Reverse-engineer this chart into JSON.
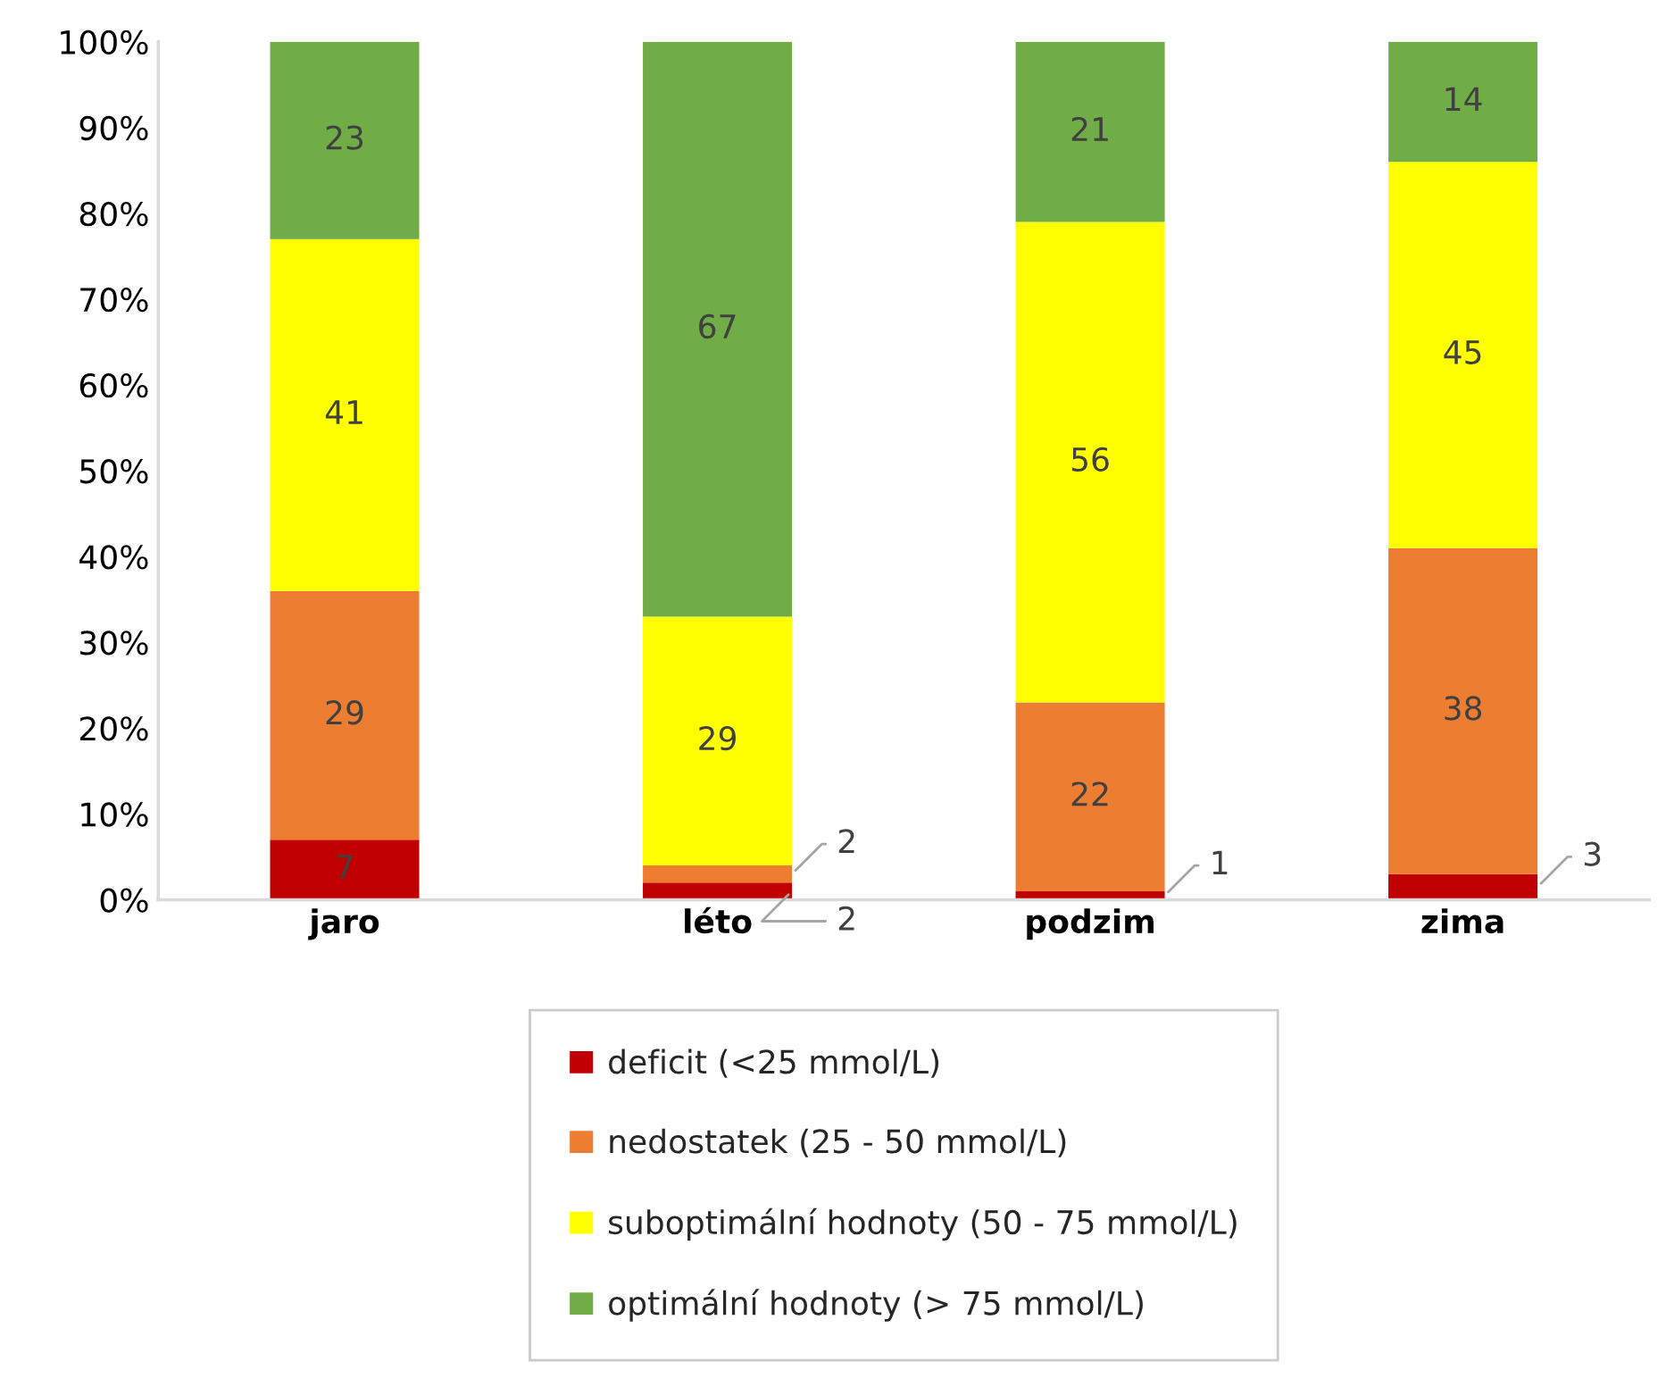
{
  "chart_data": {
    "type": "bar",
    "stacked": true,
    "categories": [
      "jaro",
      "léto",
      "podzim",
      "zima"
    ],
    "series": [
      {
        "name": "deficit (<25 mmol/L)",
        "color": "#c00000",
        "values": [
          7,
          2,
          1,
          3
        ]
      },
      {
        "name": "nedostatek (25 - 50 mmol/L)",
        "color": "#ed7d31",
        "values": [
          29,
          2,
          22,
          38
        ]
      },
      {
        "name": "suboptimální hodnoty (50 - 75 mmol/L)",
        "color": "#ffff00",
        "values": [
          41,
          29,
          56,
          45
        ]
      },
      {
        "name": "optimální hodnoty (> 75 mmol/L)",
        "color": "#70ad47",
        "values": [
          23,
          67,
          21,
          14
        ]
      }
    ],
    "ylim": [
      0,
      100
    ],
    "yticks": [
      {
        "value": 0,
        "label": "0%"
      },
      {
        "value": 10,
        "label": "10%"
      },
      {
        "value": 20,
        "label": "20%"
      },
      {
        "value": 30,
        "label": "30%"
      },
      {
        "value": 40,
        "label": "40%"
      },
      {
        "value": 50,
        "label": "50%"
      },
      {
        "value": 60,
        "label": "60%"
      },
      {
        "value": 70,
        "label": "70%"
      },
      {
        "value": 80,
        "label": "80%"
      },
      {
        "value": 90,
        "label": "90%"
      },
      {
        "value": 100,
        "label": "100%"
      }
    ],
    "data_labels": true,
    "grid": false,
    "legend": "bottom"
  }
}
